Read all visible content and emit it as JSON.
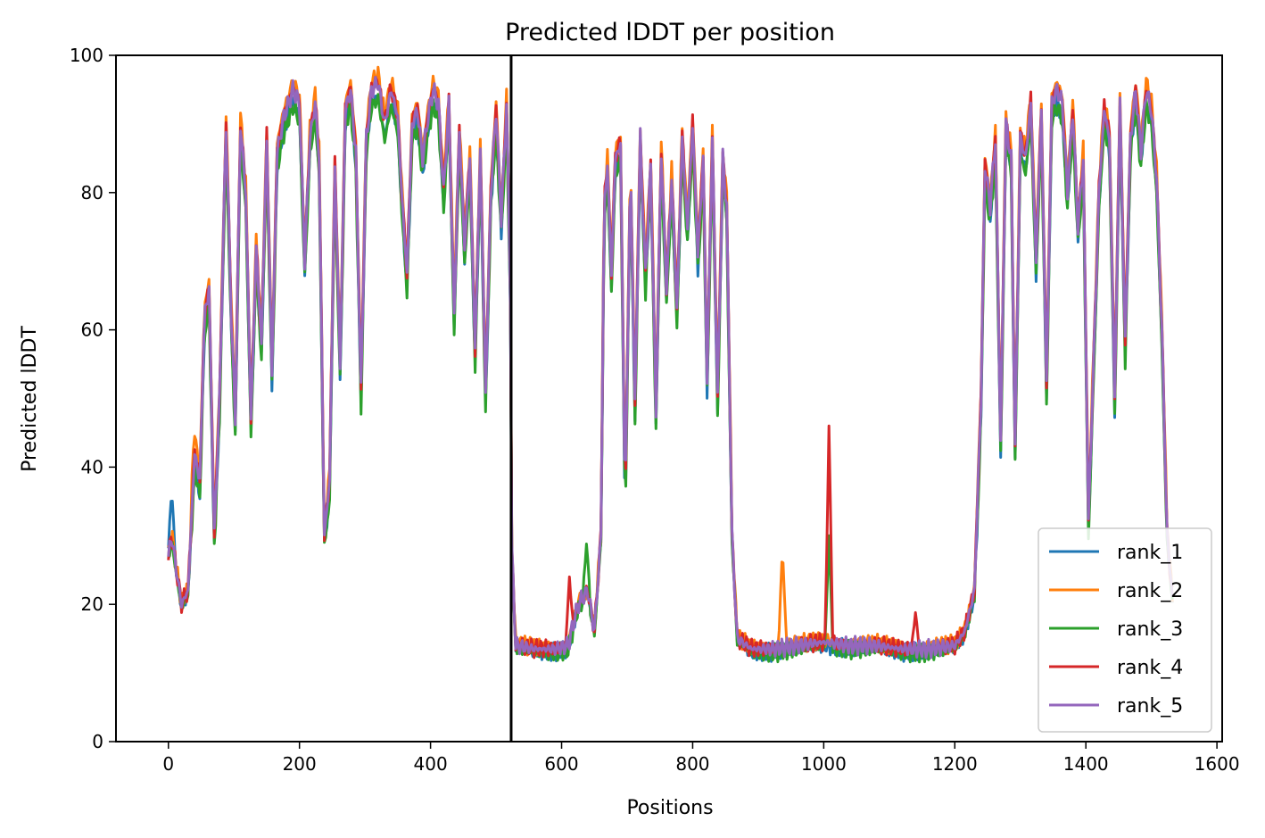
{
  "chart_data": {
    "type": "line",
    "title": "Predicted lDDT per position",
    "xlabel": "Positions",
    "ylabel": "Predicted lDDT",
    "xlim": [
      -80,
      1608
    ],
    "ylim": [
      0,
      100
    ],
    "xticks": [
      0,
      200,
      400,
      600,
      800,
      1000,
      1200,
      1400,
      1600
    ],
    "yticks": [
      0,
      20,
      40,
      60,
      80,
      100
    ],
    "grid": false,
    "legend_position": "bottom-right",
    "vline_x": 523,
    "series": [
      {
        "name": "rank_1",
        "color": "#1f77b4",
        "offset": -1.5,
        "spikes": [
          [
            5,
            36.3
          ],
          [
            136,
            51.6
          ]
        ]
      },
      {
        "name": "rank_2",
        "color": "#ff7f0e",
        "offset": 1.0,
        "spikes": [
          [
            937,
            28.6
          ],
          [
            40,
            44.5
          ]
        ]
      },
      {
        "name": "rank_3",
        "color": "#2ca02c",
        "offset": -2.0,
        "spikes": [
          [
            638,
            28.8
          ],
          [
            1288,
            42.0
          ],
          [
            1008,
            30.0
          ]
        ]
      },
      {
        "name": "rank_4",
        "color": "#d62728",
        "offset": 0.3,
        "spikes": [
          [
            1008,
            46.0
          ],
          [
            1140,
            18.8
          ],
          [
            612,
            24.0
          ]
        ]
      },
      {
        "name": "rank_5",
        "color": "#9467bd",
        "offset": 0.0,
        "spikes": []
      }
    ],
    "profile": [
      [
        0,
        27
      ],
      [
        5,
        30
      ],
      [
        12,
        25
      ],
      [
        20,
        20
      ],
      [
        30,
        22
      ],
      [
        40,
        42
      ],
      [
        48,
        38
      ],
      [
        55,
        62
      ],
      [
        62,
        66
      ],
      [
        70,
        30
      ],
      [
        78,
        50
      ],
      [
        88,
        90
      ],
      [
        96,
        62
      ],
      [
        102,
        47
      ],
      [
        110,
        90
      ],
      [
        118,
        80
      ],
      [
        126,
        47
      ],
      [
        134,
        72
      ],
      [
        142,
        58
      ],
      [
        150,
        88
      ],
      [
        158,
        54
      ],
      [
        166,
        86
      ],
      [
        176,
        91
      ],
      [
        190,
        95
      ],
      [
        200,
        93
      ],
      [
        208,
        70
      ],
      [
        216,
        88
      ],
      [
        224,
        93
      ],
      [
        230,
        85
      ],
      [
        238,
        30
      ],
      [
        246,
        38
      ],
      [
        254,
        84
      ],
      [
        262,
        55
      ],
      [
        270,
        92
      ],
      [
        278,
        95
      ],
      [
        286,
        86
      ],
      [
        294,
        51
      ],
      [
        302,
        88
      ],
      [
        310,
        95
      ],
      [
        320,
        96
      ],
      [
        330,
        90
      ],
      [
        340,
        95
      ],
      [
        350,
        91
      ],
      [
        356,
        80
      ],
      [
        364,
        68
      ],
      [
        372,
        90
      ],
      [
        380,
        92
      ],
      [
        388,
        85
      ],
      [
        396,
        91
      ],
      [
        404,
        95
      ],
      [
        412,
        93
      ],
      [
        420,
        80
      ],
      [
        428,
        93
      ],
      [
        436,
        62
      ],
      [
        444,
        89
      ],
      [
        452,
        72
      ],
      [
        460,
        85
      ],
      [
        468,
        57
      ],
      [
        476,
        86
      ],
      [
        484,
        51
      ],
      [
        492,
        80
      ],
      [
        500,
        92
      ],
      [
        508,
        76
      ],
      [
        516,
        93
      ],
      [
        523,
        60
      ],
      [
        524,
        28
      ],
      [
        530,
        14
      ],
      [
        560,
        13.5
      ],
      [
        590,
        13.5
      ],
      [
        610,
        14
      ],
      [
        625,
        20
      ],
      [
        640,
        22
      ],
      [
        650,
        16
      ],
      [
        660,
        30
      ],
      [
        665,
        78
      ],
      [
        670,
        84
      ],
      [
        676,
        68
      ],
      [
        682,
        85
      ],
      [
        690,
        87
      ],
      [
        697,
        34
      ],
      [
        705,
        84
      ],
      [
        712,
        49
      ],
      [
        720,
        88
      ],
      [
        728,
        68
      ],
      [
        736,
        84
      ],
      [
        744,
        48
      ],
      [
        752,
        86
      ],
      [
        760,
        66
      ],
      [
        768,
        82
      ],
      [
        776,
        63
      ],
      [
        784,
        88
      ],
      [
        792,
        75
      ],
      [
        800,
        90
      ],
      [
        808,
        71
      ],
      [
        816,
        85
      ],
      [
        822,
        53
      ],
      [
        830,
        88
      ],
      [
        838,
        50
      ],
      [
        846,
        85
      ],
      [
        852,
        78
      ],
      [
        860,
        30
      ],
      [
        868,
        15
      ],
      [
        890,
        13.5
      ],
      [
        920,
        13.5
      ],
      [
        960,
        14
      ],
      [
        1000,
        14.5
      ],
      [
        1040,
        14
      ],
      [
        1080,
        14
      ],
      [
        1120,
        13.5
      ],
      [
        1160,
        13.5
      ],
      [
        1200,
        14
      ],
      [
        1215,
        16
      ],
      [
        1230,
        22
      ],
      [
        1240,
        50
      ],
      [
        1246,
        84
      ],
      [
        1254,
        78
      ],
      [
        1262,
        88
      ],
      [
        1270,
        44
      ],
      [
        1278,
        90
      ],
      [
        1286,
        85
      ],
      [
        1292,
        43
      ],
      [
        1300,
        88
      ],
      [
        1308,
        85
      ],
      [
        1316,
        93
      ],
      [
        1324,
        70
      ],
      [
        1332,
        92
      ],
      [
        1340,
        52
      ],
      [
        1348,
        93
      ],
      [
        1356,
        95
      ],
      [
        1364,
        93
      ],
      [
        1372,
        80
      ],
      [
        1380,
        92
      ],
      [
        1388,
        75
      ],
      [
        1396,
        85
      ],
      [
        1404,
        32
      ],
      [
        1412,
        56
      ],
      [
        1420,
        80
      ],
      [
        1428,
        92
      ],
      [
        1436,
        88
      ],
      [
        1444,
        50
      ],
      [
        1452,
        93
      ],
      [
        1460,
        58
      ],
      [
        1468,
        88
      ],
      [
        1476,
        95
      ],
      [
        1484,
        86
      ],
      [
        1492,
        95
      ],
      [
        1500,
        92
      ],
      [
        1508,
        82
      ],
      [
        1516,
        60
      ],
      [
        1524,
        30
      ],
      [
        1532,
        21
      ]
    ]
  }
}
